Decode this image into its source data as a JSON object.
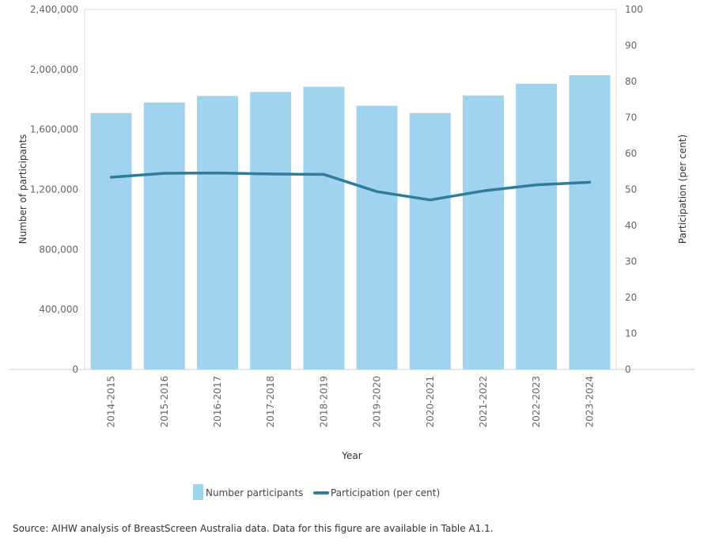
{
  "chart_data": {
    "type": "bar",
    "categories": [
      "2014-2015",
      "2015-2016",
      "2016-2017",
      "2017-2018",
      "2018-2019",
      "2019-2020",
      "2020-2021",
      "2021-2022",
      "2022-2023",
      "2023-2024"
    ],
    "series": [
      {
        "name": "Number participants",
        "type": "bar",
        "axis": "left",
        "color": "#9fd3ee",
        "values": [
          1710000,
          1780000,
          1823000,
          1850000,
          1885000,
          1758000,
          1710000,
          1827000,
          1905000,
          1962000
        ]
      },
      {
        "name": "Participation (per cent)",
        "type": "line",
        "axis": "right",
        "color": "#2e7d9a",
        "values": [
          53.4,
          54.5,
          54.6,
          54.3,
          54.2,
          49.4,
          47.1,
          49.6,
          51.3,
          52.0
        ]
      }
    ],
    "xlabel": "Year",
    "ylabel": "Number of participants",
    "y2label": "Participation (per cent)",
    "ylim": [
      0,
      2400000
    ],
    "y2lim": [
      0,
      100
    ],
    "yticks": [
      0,
      400000,
      800000,
      1200000,
      1600000,
      2000000,
      2400000
    ],
    "yticklabels": [
      "0",
      "400,000",
      "800,000",
      "1,200,000",
      "1,600,000",
      "2,000,000",
      "2,400,000"
    ],
    "y2ticks": [
      0,
      10,
      20,
      30,
      40,
      50,
      60,
      70,
      80,
      90,
      100
    ],
    "y2ticklabels": [
      "0",
      "10",
      "20",
      "30",
      "40",
      "50",
      "60",
      "70",
      "80",
      "90",
      "100"
    ],
    "legend_position": "bottom-center",
    "grid": false
  },
  "legend": {
    "bar_label": "Number participants",
    "line_label": "Participation (per cent)"
  },
  "source_note": "Source: AIHW analysis of BreastScreen Australia data. Data for this figure are available in Table A1.1."
}
